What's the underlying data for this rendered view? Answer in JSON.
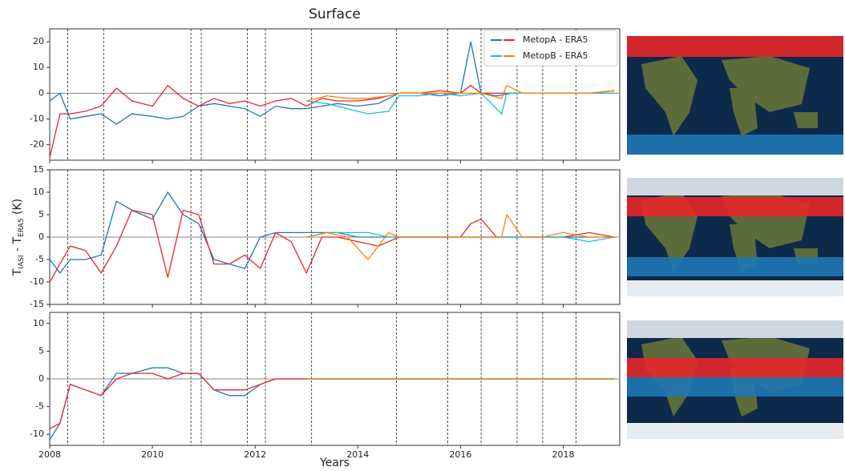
{
  "chart_data": [
    {
      "type": "line",
      "title": "Surface",
      "xlim": [
        2008,
        2019.1
      ],
      "xticks": [
        2008,
        2010,
        2012,
        2014,
        2016,
        2018
      ],
      "ylim": [
        -26,
        25
      ],
      "yticks": [
        -20,
        -10,
        0,
        10,
        20
      ],
      "hline": 0,
      "vlines": [
        2008.35,
        2009.05,
        2010.75,
        2010.95,
        2011.85,
        2012.2,
        2013.1,
        2014.75,
        2015.75,
        2016.4,
        2017.1,
        2017.6,
        2018.25
      ],
      "legend": [
        {
          "name": "MetopA - ERA5",
          "colors": [
            "#1f77b4",
            "#e8262a"
          ]
        },
        {
          "name": "MetopB - ERA5",
          "colors": [
            "#17becf",
            "#ff7f0e"
          ]
        }
      ],
      "series": [
        {
          "color": "#1f77b4",
          "x": [
            2008.0,
            2008.2,
            2008.4,
            2008.7,
            2009.0,
            2009.3,
            2009.6,
            2010.0,
            2010.3,
            2010.6,
            2010.9,
            2011.2,
            2011.5,
            2011.8,
            2012.1,
            2012.4,
            2012.7,
            2013.0,
            2013.3,
            2013.6,
            2014.0,
            2014.4,
            2014.8,
            2015.2,
            2015.6,
            2016.0,
            2016.2,
            2016.4,
            2016.7,
            2017.0,
            2017.5,
            2018.0,
            2018.5,
            2019.0
          ],
          "values": [
            -3,
            0,
            -10,
            -9,
            -8,
            -12,
            -8,
            -9,
            -10,
            -9,
            -5,
            -4,
            -5,
            -6,
            -9,
            -5,
            -6,
            -6,
            -5,
            -4,
            -5,
            -4,
            0,
            0,
            -1,
            0,
            20,
            0,
            -1,
            0,
            0,
            0,
            0,
            0
          ]
        },
        {
          "color": "#e8262a",
          "x": [
            2008.0,
            2008.2,
            2008.4,
            2008.7,
            2009.0,
            2009.3,
            2009.6,
            2010.0,
            2010.3,
            2010.6,
            2010.9,
            2011.2,
            2011.5,
            2011.8,
            2012.1,
            2012.4,
            2012.7,
            2013.0,
            2013.3,
            2013.6,
            2014.0,
            2014.4,
            2014.8,
            2015.2,
            2015.6,
            2016.0,
            2016.2,
            2016.4,
            2016.7,
            2017.0,
            2017.5,
            2018.0,
            2018.5,
            2019.0
          ],
          "values": [
            -25,
            -8,
            -8,
            -7,
            -5,
            2,
            -3,
            -5,
            3,
            -2,
            -5,
            -2,
            -4,
            -3,
            -5,
            -3,
            -2,
            -5,
            -2,
            -3,
            -3,
            -2,
            0,
            0,
            1,
            0,
            3,
            0,
            0,
            0,
            0,
            0,
            0,
            1
          ]
        },
        {
          "color": "#17becf",
          "x": [
            2013.0,
            2013.4,
            2013.8,
            2014.2,
            2014.6,
            2014.8,
            2015.2,
            2015.6,
            2016.0,
            2016.4,
            2016.8,
            2016.9,
            2017.2,
            2017.6,
            2018.0,
            2018.5,
            2019.0
          ],
          "values": [
            -3,
            -4,
            -6,
            -8,
            -7,
            -1,
            -1,
            0,
            -1,
            0,
            -8,
            0,
            0,
            0,
            0,
            0,
            0
          ]
        },
        {
          "color": "#ff7f0e",
          "x": [
            2013.0,
            2013.4,
            2013.8,
            2014.2,
            2014.6,
            2014.8,
            2015.2,
            2015.6,
            2016.0,
            2016.4,
            2016.8,
            2016.9,
            2017.2,
            2017.6,
            2018.0,
            2018.5,
            2019.0
          ],
          "values": [
            -3,
            -1,
            -2,
            -2,
            -1,
            0,
            0,
            0,
            0,
            0,
            -2,
            3,
            0,
            0,
            0,
            0,
            1
          ]
        }
      ]
    },
    {
      "type": "line",
      "ylabel": [
        "T",
        "IASI",
        " - T",
        "ERA5",
        " (K)"
      ],
      "xlim": [
        2008,
        2019.1
      ],
      "xticks": [
        2008,
        2010,
        2012,
        2014,
        2016,
        2018
      ],
      "ylim": [
        -15,
        15
      ],
      "yticks": [
        -15,
        -10,
        -5,
        0,
        5,
        10,
        15
      ],
      "hline": 0,
      "vlines": [
        2008.35,
        2009.05,
        2010.75,
        2010.95,
        2011.85,
        2012.2,
        2013.1,
        2014.75,
        2015.75,
        2016.4,
        2017.1,
        2017.6,
        2018.25
      ],
      "series": [
        {
          "color": "#1f77b4",
          "x": [
            2008.0,
            2008.2,
            2008.4,
            2008.7,
            2009.0,
            2009.3,
            2009.6,
            2010.0,
            2010.3,
            2010.6,
            2010.9,
            2011.2,
            2011.5,
            2011.8,
            2012.1,
            2012.4,
            2012.7,
            2013.0,
            2013.3,
            2013.6,
            2014.0,
            2014.4,
            2014.8,
            2015.2,
            2015.6,
            2016.0,
            2016.2,
            2016.4,
            2016.7,
            2017.0,
            2017.5,
            2018.0,
            2018.5,
            2019.0
          ],
          "values": [
            -5,
            -8,
            -5,
            -5,
            -4,
            8,
            6,
            4,
            10,
            5,
            3,
            -5,
            -6,
            -7,
            0,
            1,
            1,
            1,
            1,
            1,
            0,
            0,
            0,
            0,
            0,
            0,
            0,
            0,
            0,
            0,
            0,
            0,
            0,
            0
          ]
        },
        {
          "color": "#e8262a",
          "x": [
            2008.0,
            2008.2,
            2008.4,
            2008.7,
            2009.0,
            2009.3,
            2009.6,
            2010.0,
            2010.3,
            2010.6,
            2010.9,
            2011.2,
            2011.5,
            2011.8,
            2012.1,
            2012.4,
            2012.7,
            2013.0,
            2013.3,
            2013.6,
            2014.0,
            2014.4,
            2014.8,
            2015.2,
            2015.6,
            2016.0,
            2016.2,
            2016.4,
            2016.7,
            2017.0,
            2017.5,
            2018.0,
            2018.5,
            2019.0
          ],
          "values": [
            -10,
            -6,
            -2,
            -3,
            -8,
            -2,
            6,
            5,
            -9,
            6,
            5,
            -6,
            -6,
            -4,
            -7,
            1,
            -1,
            -8,
            0,
            0,
            -1,
            -2,
            0,
            0,
            0,
            0,
            3,
            4,
            0,
            0,
            0,
            0,
            1,
            0
          ]
        },
        {
          "color": "#17becf",
          "x": [
            2013.0,
            2013.4,
            2013.8,
            2014.2,
            2014.6,
            2014.8,
            2015.2,
            2015.6,
            2016.0,
            2016.4,
            2016.8,
            2016.9,
            2017.2,
            2017.6,
            2018.0,
            2018.5,
            2019.0
          ],
          "values": [
            0,
            1,
            1,
            1,
            0,
            0,
            0,
            0,
            0,
            0,
            0,
            0,
            0,
            0,
            0,
            -1,
            0
          ]
        },
        {
          "color": "#ff7f0e",
          "x": [
            2013.0,
            2013.4,
            2013.8,
            2014.2,
            2014.6,
            2014.8,
            2015.2,
            2015.6,
            2016.0,
            2016.4,
            2016.8,
            2016.9,
            2017.2,
            2017.6,
            2018.0,
            2018.5,
            2019.0
          ],
          "values": [
            0,
            1,
            0,
            -5,
            1,
            0,
            0,
            0,
            0,
            0,
            0,
            5,
            0,
            0,
            1,
            0,
            0
          ]
        }
      ]
    },
    {
      "type": "line",
      "xlabel": "Years",
      "xlim": [
        2008,
        2019.1
      ],
      "xticks": [
        2008,
        2010,
        2012,
        2014,
        2016,
        2018
      ],
      "ylim": [
        -12,
        12
      ],
      "yticks": [
        -10,
        -5,
        0,
        5,
        10
      ],
      "hline": 0,
      "vlines": [
        2008.35,
        2009.05,
        2010.75,
        2010.95,
        2011.85,
        2012.2,
        2013.1,
        2014.75,
        2015.75,
        2016.4,
        2017.1,
        2017.6,
        2018.25
      ],
      "series": [
        {
          "color": "#1f77b4",
          "x": [
            2008.0,
            2008.2,
            2008.4,
            2008.7,
            2009.0,
            2009.3,
            2009.6,
            2010.0,
            2010.3,
            2010.6,
            2010.9,
            2011.2,
            2011.5,
            2011.8,
            2012.1,
            2012.4,
            2012.7,
            2013.0,
            2013.3,
            2013.6,
            2014.0,
            2014.4,
            2014.8,
            2015.2,
            2015.6,
            2016.0,
            2016.2,
            2016.4,
            2016.7,
            2017.0,
            2017.5,
            2018.0,
            2018.5,
            2019.0
          ],
          "values": [
            -11,
            -8,
            -1,
            -2,
            -3,
            1,
            1,
            2,
            2,
            1,
            1,
            -2,
            -3,
            -3,
            -1,
            0,
            0,
            0,
            0,
            0,
            0,
            0,
            0,
            0,
            0,
            0,
            0,
            0,
            0,
            0,
            0,
            0,
            0,
            0
          ]
        },
        {
          "color": "#e8262a",
          "x": [
            2008.0,
            2008.2,
            2008.4,
            2008.7,
            2009.0,
            2009.3,
            2009.6,
            2010.0,
            2010.3,
            2010.6,
            2010.9,
            2011.2,
            2011.5,
            2011.8,
            2012.1,
            2012.4,
            2012.7,
            2013.0,
            2013.3,
            2013.6,
            2014.0,
            2014.4,
            2014.8,
            2015.2,
            2015.6,
            2016.0,
            2016.2,
            2016.4,
            2016.7,
            2017.0,
            2017.5,
            2018.0,
            2018.5,
            2019.0
          ],
          "values": [
            -9,
            -8,
            -1,
            -2,
            -3,
            0,
            1,
            1,
            0,
            1,
            1,
            -2,
            -2,
            -2,
            -1,
            0,
            0,
            0,
            0,
            0,
            0,
            0,
            0,
            0,
            0,
            0,
            0,
            0,
            0,
            0,
            0,
            0,
            0,
            0
          ]
        },
        {
          "color": "#17becf",
          "x": [
            2013.0,
            2013.4,
            2013.8,
            2014.2,
            2014.6,
            2014.8,
            2015.2,
            2015.6,
            2016.0,
            2016.4,
            2016.8,
            2016.9,
            2017.2,
            2017.6,
            2018.0,
            2018.5,
            2019.0
          ],
          "values": [
            0,
            0,
            0,
            0,
            0,
            0,
            0,
            0,
            0,
            0,
            0,
            0,
            0,
            0,
            0,
            0,
            0
          ]
        },
        {
          "color": "#ff7f0e",
          "x": [
            2013.0,
            2013.4,
            2013.8,
            2014.2,
            2014.6,
            2014.8,
            2015.2,
            2015.6,
            2016.0,
            2016.4,
            2016.8,
            2016.9,
            2017.2,
            2017.6,
            2018.0,
            2018.5,
            2019.0
          ],
          "values": [
            0,
            0,
            0,
            0,
            0,
            0,
            0,
            0,
            0,
            0,
            0,
            0,
            0,
            0,
            0,
            0,
            0
          ]
        }
      ]
    }
  ]
}
